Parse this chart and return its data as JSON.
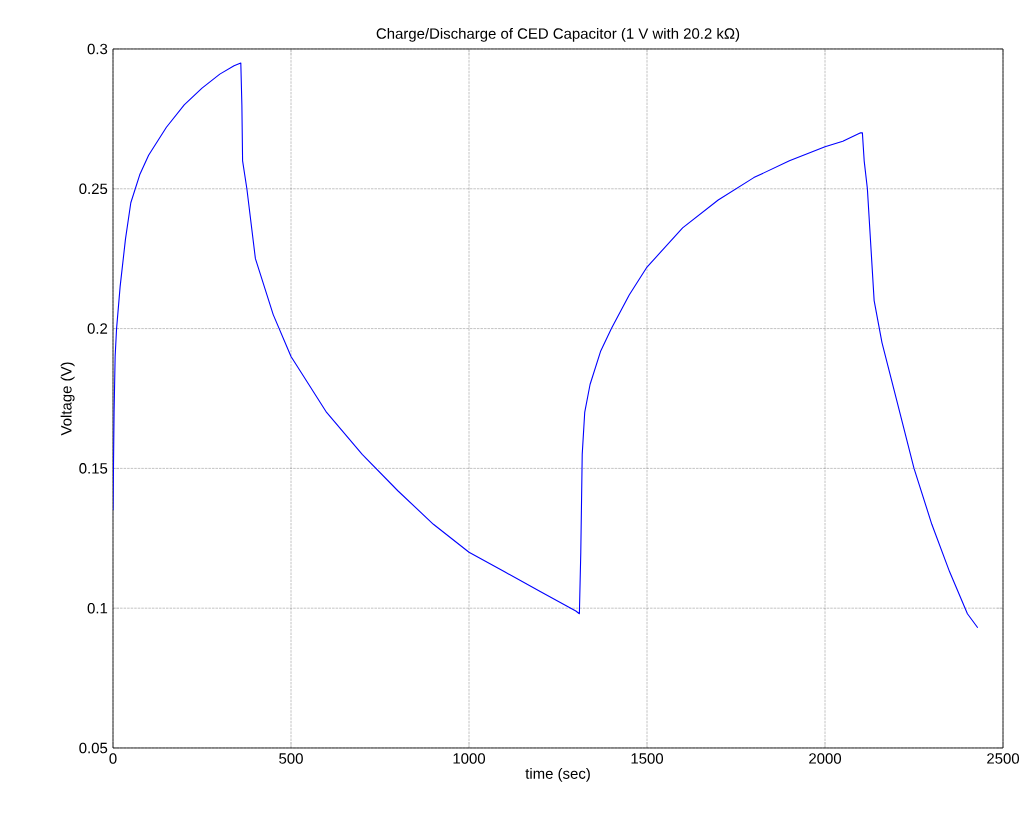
{
  "chart_data": {
    "type": "line",
    "title": "Charge/Discharge of CED Capacitor (1 V with 20.2 kΩ)",
    "xlabel": "time (sec)",
    "ylabel": "Voltage (V)",
    "x": [
      0,
      3,
      6,
      10,
      20,
      35,
      50,
      75,
      100,
      150,
      200,
      250,
      300,
      340,
      359,
      362,
      364,
      370,
      376,
      400,
      450,
      500,
      600,
      700,
      800,
      900,
      1000,
      1100,
      1200,
      1300,
      1310,
      1314,
      1318,
      1325,
      1340,
      1370,
      1400,
      1450,
      1500,
      1600,
      1700,
      1800,
      1900,
      2000,
      2050,
      2100,
      2105,
      2110,
      2119,
      2138,
      2160,
      2200,
      2250,
      2300,
      2350,
      2400,
      2429
    ],
    "series": [
      {
        "color": "#0000ff",
        "values": [
          0.135,
          0.17,
          0.19,
          0.2,
          0.215,
          0.232,
          0.245,
          0.255,
          0.262,
          0.272,
          0.28,
          0.286,
          0.291,
          0.294,
          0.295,
          0.28,
          0.26,
          0.255,
          0.25,
          0.225,
          0.205,
          0.19,
          0.17,
          0.155,
          0.142,
          0.13,
          0.12,
          0.113,
          0.106,
          0.099,
          0.098,
          0.12,
          0.155,
          0.17,
          0.18,
          0.192,
          0.2,
          0.212,
          0.222,
          0.236,
          0.246,
          0.254,
          0.26,
          0.265,
          0.267,
          0.27,
          0.27,
          0.26,
          0.25,
          0.21,
          0.195,
          0.175,
          0.15,
          0.13,
          0.113,
          0.098,
          0.093
        ]
      }
    ],
    "xlim": [
      0,
      2500
    ],
    "ylim": [
      0.05,
      0.3
    ],
    "xticks": [
      0,
      500,
      1000,
      1500,
      2000,
      2500
    ],
    "yticks": [
      0.05,
      0.1,
      0.15,
      0.2,
      0.25,
      0.3
    ],
    "grid": true,
    "line_style": "solid",
    "marker": "none"
  }
}
